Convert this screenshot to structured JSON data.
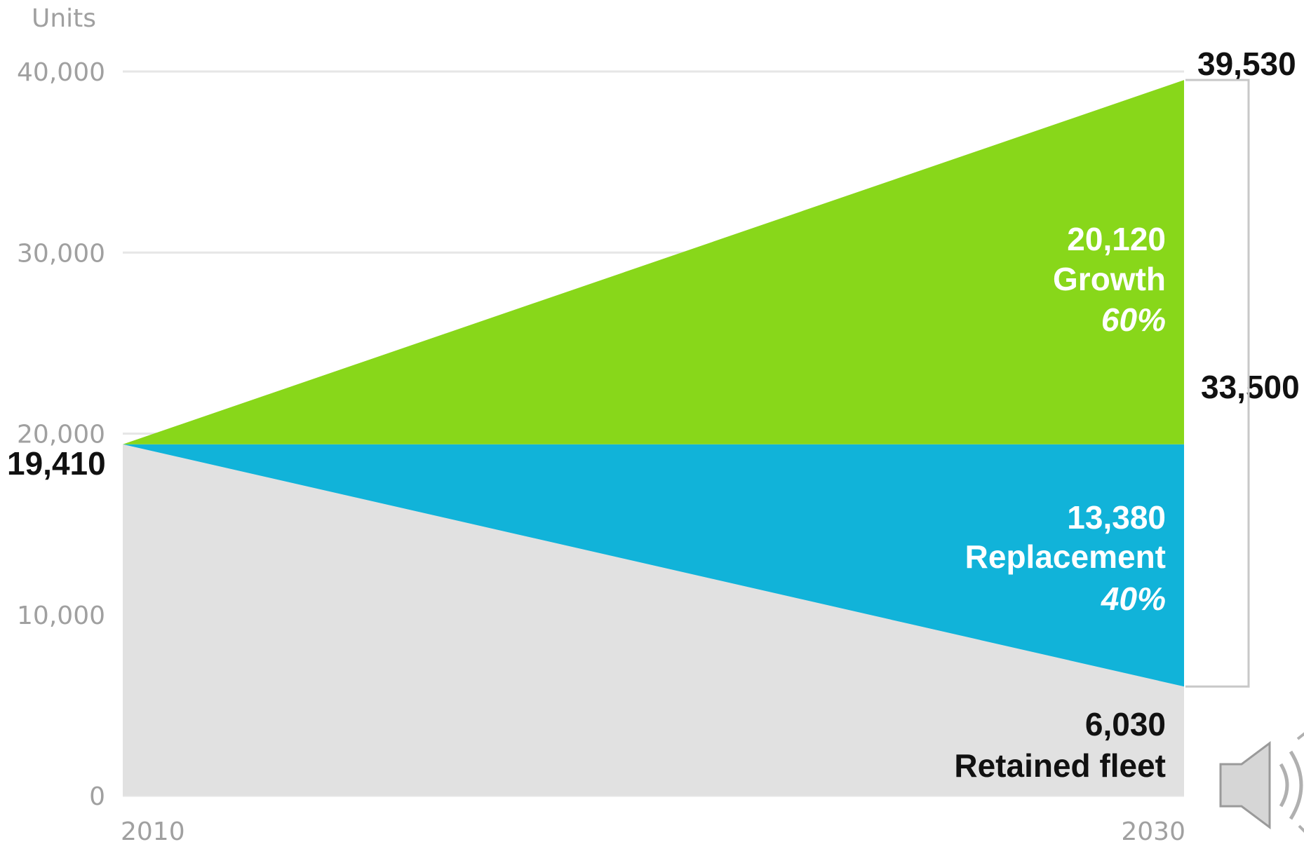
{
  "chart_data": {
    "type": "area",
    "ylabel": "Units",
    "ylim": [
      0,
      40000
    ],
    "yticks": [
      "0",
      "10,000",
      "20,000",
      "30,000",
      "40,000"
    ],
    "x": [
      "2010",
      "2030"
    ],
    "grid": true,
    "series": [
      {
        "name": "Retained fleet",
        "values": [
          19410,
          6030
        ],
        "color": "#e1e1e1"
      },
      {
        "name": "Replacement",
        "values": [
          0,
          13380
        ],
        "color": "#11b3d9"
      },
      {
        "name": "Growth",
        "values": [
          0,
          20120
        ],
        "color": "#88d71a"
      }
    ],
    "labels": {
      "start_total": "19,410",
      "end_total": "39,530",
      "bracket_total": "33,500",
      "growth": {
        "value": "20,120",
        "name": "Growth",
        "pct": "60%"
      },
      "replacement": {
        "value": "13,380",
        "name": "Replacement",
        "pct": "40%"
      },
      "retained": {
        "value": "6,030",
        "name": "Retained fleet"
      }
    }
  },
  "icons": {
    "speaker": "speaker-icon"
  }
}
